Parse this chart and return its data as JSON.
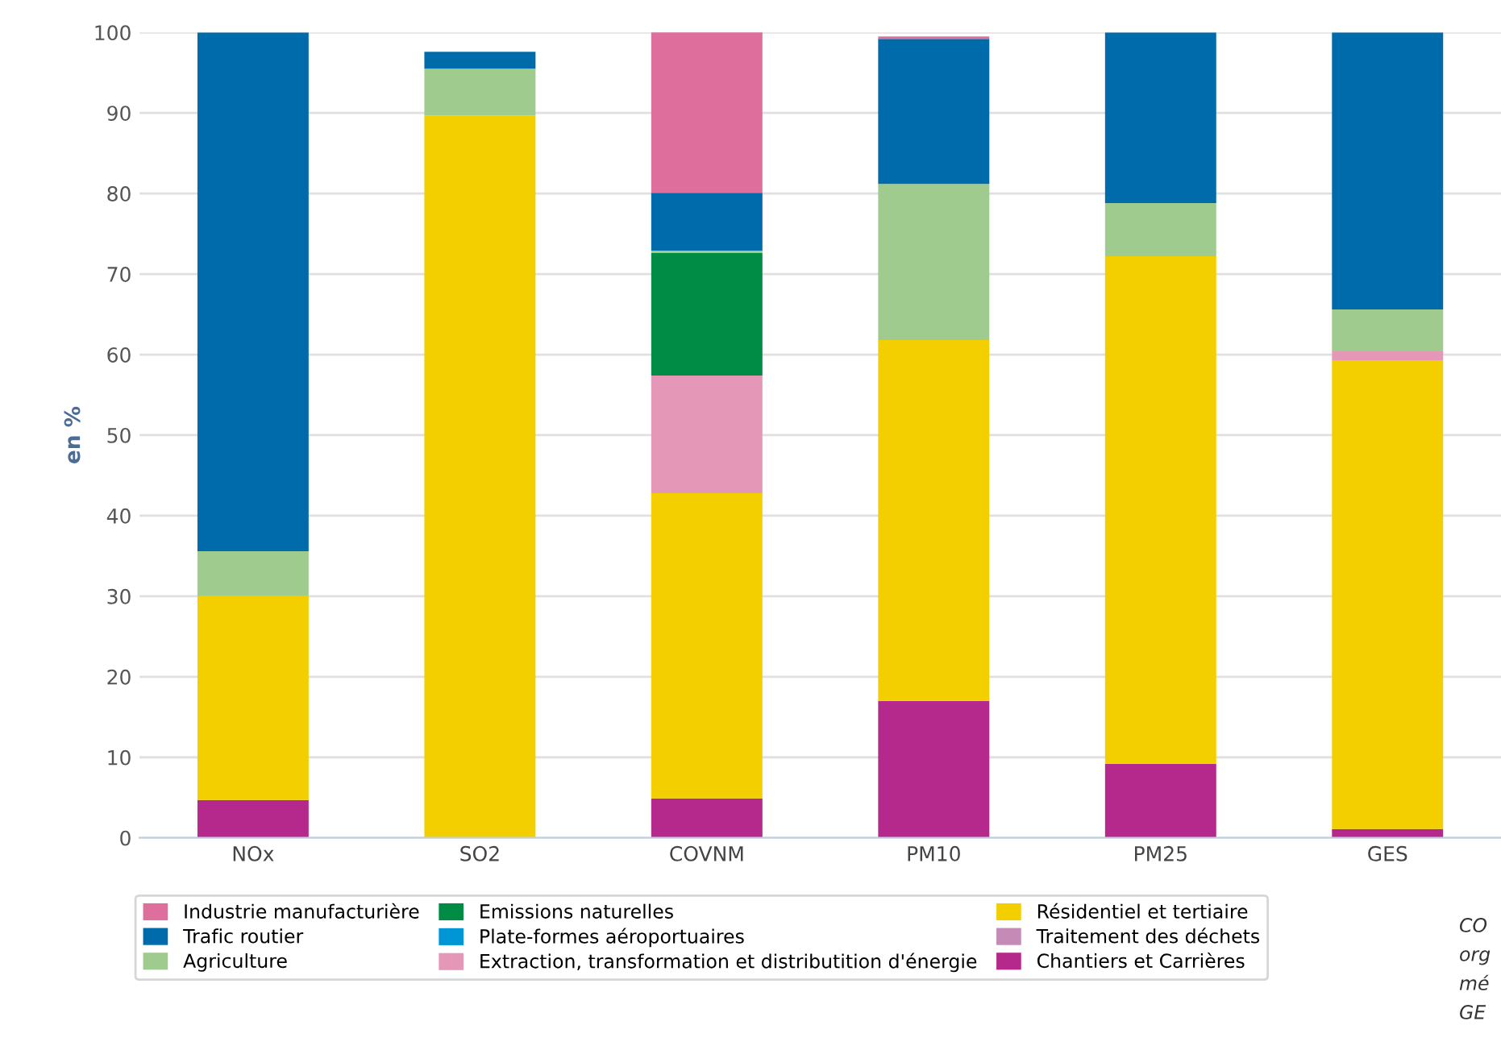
{
  "chart_data": {
    "type": "bar",
    "stacked": true,
    "ylabel": "en %",
    "categories": [
      "NOx",
      "SO2",
      "COVNM",
      "PM10",
      "PM25",
      "GES"
    ],
    "ylim": [
      0,
      100
    ],
    "yticks": [
      0,
      10,
      20,
      30,
      40,
      50,
      60,
      70,
      80,
      90,
      100
    ],
    "grid": "y",
    "legend": "bottom left",
    "series": [
      {
        "name": "Chantiers et Carrières",
        "color": "#b5288c",
        "values": [
          4.7,
          0,
          4.9,
          17.0,
          9.2,
          1.1
        ]
      },
      {
        "name": "Traitement des déchets",
        "color": "#c58ab5",
        "values": [
          0,
          0,
          0,
          0,
          0,
          0
        ]
      },
      {
        "name": "Résidentiel et tertiaire",
        "color": "#f4cf00",
        "values": [
          25.3,
          89.7,
          37.9,
          44.8,
          63.0,
          58.2
        ]
      },
      {
        "name": "Extraction, transformation et distributition d'énergie",
        "color": "#e597b8",
        "values": [
          0,
          0,
          14.6,
          0,
          0,
          1.1
        ]
      },
      {
        "name": "Plate-formes aéroportuaires",
        "color": "#0096d6",
        "values": [
          0,
          0,
          0,
          0,
          0,
          0
        ]
      },
      {
        "name": "Emissions naturelles",
        "color": "#008c45",
        "values": [
          0,
          0,
          15.2,
          0,
          0,
          0
        ]
      },
      {
        "name": "Agriculture",
        "color": "#a0cb8f",
        "values": [
          5.6,
          5.8,
          0.3,
          19.4,
          6.6,
          5.2
        ]
      },
      {
        "name": "Trafic routier",
        "color": "#006bab",
        "values": [
          64.4,
          2.1,
          7.2,
          18.0,
          21.2,
          34.4
        ]
      },
      {
        "name": "Industrie manufacturière",
        "color": "#de6e9b",
        "values": [
          0,
          0,
          20.2,
          0.3,
          0,
          0
        ]
      }
    ],
    "annotations": [
      "CO",
      "org",
      "mé",
      "GE"
    ]
  }
}
